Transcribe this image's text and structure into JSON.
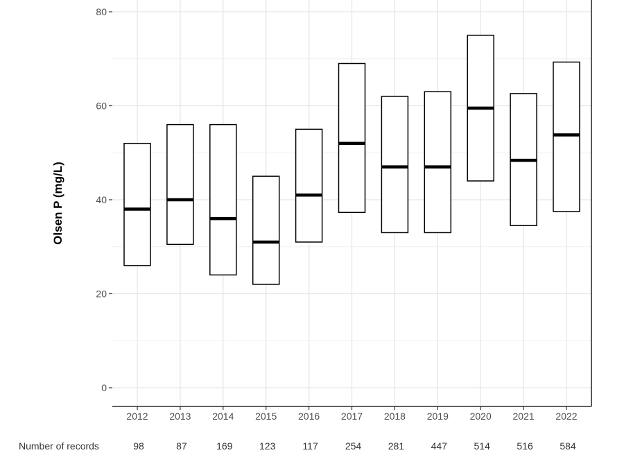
{
  "chart_data": {
    "type": "box",
    "ylabel": "Olsen P (mg/L)",
    "xlabel": "",
    "ylim": [
      -4,
      82
    ],
    "y_ticks": [
      0,
      20,
      40,
      60,
      80
    ],
    "y_tick_labels": [
      "0",
      "20",
      "40",
      "60",
      "80"
    ],
    "grid": true,
    "categories": [
      "2012",
      "2013",
      "2014",
      "2015",
      "2016",
      "2017",
      "2018",
      "2019",
      "2020",
      "2021",
      "2022"
    ],
    "boxes": [
      {
        "category": "2012",
        "q1": 26,
        "median": 38,
        "q3": 52
      },
      {
        "category": "2013",
        "q1": 30.5,
        "median": 40,
        "q3": 56
      },
      {
        "category": "2014",
        "q1": 24,
        "median": 36,
        "q3": 56
      },
      {
        "category": "2015",
        "q1": 22,
        "median": 31,
        "q3": 45
      },
      {
        "category": "2016",
        "q1": 31,
        "median": 41,
        "q3": 55
      },
      {
        "category": "2017",
        "q1": 37.3,
        "median": 52,
        "q3": 69
      },
      {
        "category": "2018",
        "q1": 33,
        "median": 47,
        "q3": 62
      },
      {
        "category": "2019",
        "q1": 33,
        "median": 47,
        "q3": 63
      },
      {
        "category": "2020",
        "q1": 44,
        "median": 59.5,
        "q3": 75
      },
      {
        "category": "2021",
        "q1": 34.5,
        "median": 48.4,
        "q3": 62.6
      },
      {
        "category": "2022",
        "q1": 37.5,
        "median": 53.8,
        "q3": 69.3
      }
    ],
    "records_label": "Number of records",
    "record_counts": [
      "98",
      "87",
      "169",
      "123",
      "117",
      "254",
      "281",
      "447",
      "514",
      "516",
      "584"
    ]
  }
}
